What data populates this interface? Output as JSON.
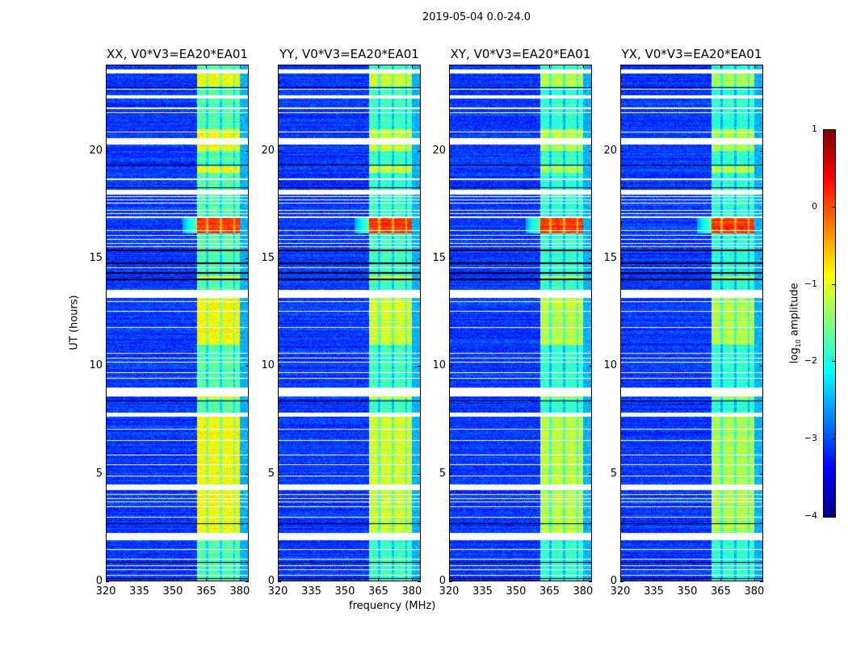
{
  "chart_data": {
    "type": "heatmap",
    "title": "2019-05-04 0.0-24.0",
    "xlabel": "frequency (MHz)",
    "ylabel": "UT (hours)",
    "xlim": [
      320,
      384
    ],
    "ylim": [
      0,
      24
    ],
    "xticks": [
      "320",
      "335",
      "350",
      "365",
      "380"
    ],
    "xtick_values": [
      320,
      335,
      350,
      365,
      380
    ],
    "yticks": [
      "0",
      "5",
      "10",
      "15",
      "20"
    ],
    "ytick_values": [
      0,
      5,
      10,
      15,
      20
    ],
    "colorbar": {
      "label_main": "log",
      "label_sub": "10",
      "label_rest": " amplitude",
      "range": [
        -4,
        1
      ],
      "ticks": [
        "1",
        "0",
        "−1",
        "−2",
        "−3",
        "−4"
      ],
      "tick_values": [
        1,
        0,
        -1,
        -2,
        -3,
        -4
      ],
      "colormap": "jet"
    },
    "background_level": -3.1,
    "band_mhz": [
      360.5,
      380
    ],
    "band_gaps_mhz": [
      365.2,
      371.3,
      377.3
    ],
    "band_bright_hours": [
      [
        23.0,
        23.6
      ],
      [
        20.0,
        21.0
      ],
      [
        19.0,
        19.3
      ],
      [
        14.0,
        14.2
      ],
      [
        11.0,
        13.2
      ],
      [
        8.5,
        8.9
      ],
      [
        2.1,
        7.7
      ]
    ],
    "rfi_burst_hours": [
      16.2,
      16.9
    ],
    "rfi_burst_level": 0.1,
    "flagged_hours": [
      [
        23.6,
        23.8
      ],
      [
        22.85,
        22.9
      ],
      [
        22.45,
        22.6
      ],
      [
        21.97,
        22.02
      ],
      [
        21.77,
        21.82
      ],
      [
        20.87,
        20.92
      ],
      [
        20.3,
        20.6
      ],
      [
        18.67,
        18.72
      ],
      [
        18.0,
        18.2
      ],
      [
        17.88,
        17.92
      ],
      [
        17.73,
        17.77
      ],
      [
        17.58,
        17.62
      ],
      [
        17.23,
        17.27
      ],
      [
        17.08,
        17.12
      ],
      [
        16.9,
        16.98
      ],
      [
        16.28,
        16.32
      ],
      [
        16.08,
        16.12
      ],
      [
        15.88,
        15.92
      ],
      [
        15.68,
        15.72
      ],
      [
        15.53,
        15.57
      ],
      [
        14.58,
        14.62
      ],
      [
        13.2,
        13.55
      ],
      [
        12.98,
        13.02
      ],
      [
        12.53,
        12.57
      ],
      [
        11.78,
        11.82
      ],
      [
        10.58,
        10.62
      ],
      [
        10.38,
        10.42
      ],
      [
        10.18,
        10.22
      ],
      [
        9.68,
        9.72
      ],
      [
        9.43,
        9.47
      ],
      [
        8.6,
        9.0
      ],
      [
        7.65,
        7.87
      ],
      [
        7.08,
        7.12
      ],
      [
        6.53,
        6.57
      ],
      [
        5.88,
        5.92
      ],
      [
        5.43,
        5.47
      ],
      [
        4.88,
        4.92
      ],
      [
        4.25,
        4.5
      ],
      [
        4.03,
        4.07
      ],
      [
        3.83,
        3.87
      ],
      [
        3.68,
        3.72
      ],
      [
        3.48,
        3.52
      ],
      [
        2.98,
        3.02
      ],
      [
        1.95,
        2.25
      ],
      [
        1.48,
        1.52
      ],
      [
        1.03,
        1.07
      ],
      [
        0.73,
        0.77
      ],
      [
        0.53,
        0.57
      ],
      [
        0.28,
        0.32
      ]
    ],
    "dark_hours": [
      22.95,
      19.35,
      18.3,
      15.4,
      14.8,
      14.35,
      14.05,
      8.4,
      2.7,
      0.9,
      0.15
    ],
    "panels": [
      {
        "title": "XX, V0*V3=EA20*EA01",
        "band_level_bright": -0.9,
        "band_level": -1.7
      },
      {
        "title": "YY, V0*V3=EA20*EA01",
        "band_level_bright": -1.1,
        "band_level": -1.8
      },
      {
        "title": "XY, V0*V3=EA20*EA01",
        "band_level_bright": -1.2,
        "band_level": -1.85
      },
      {
        "title": "YX, V0*V3=EA20*EA01",
        "band_level_bright": -1.25,
        "band_level": -1.9
      }
    ]
  }
}
